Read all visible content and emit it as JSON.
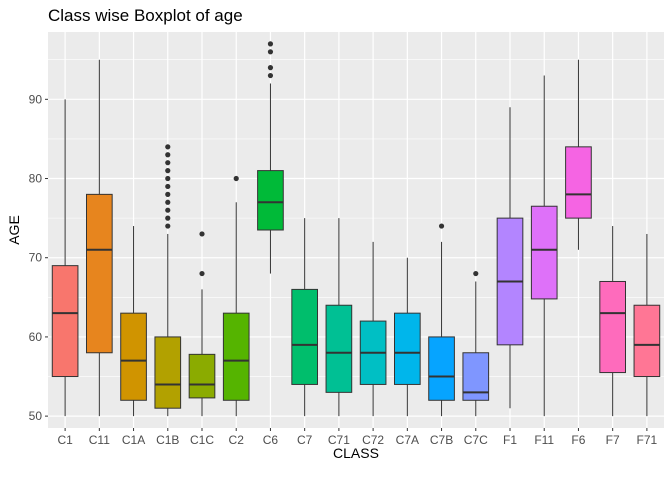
{
  "chart_data": {
    "type": "boxplot",
    "title": "Class wise Boxplot of age",
    "xlabel": "CLASS",
    "ylabel": "AGE",
    "ylim": [
      48.5,
      98.5
    ],
    "yticks": [
      50,
      60,
      70,
      80,
      90
    ],
    "grid": true,
    "legend": "none",
    "panel_color": "#ebebeb",
    "grid_color": "#ffffff",
    "categories": [
      "C1",
      "C11",
      "C1A",
      "C1B",
      "C1C",
      "C2",
      "C6",
      "C7",
      "C71",
      "C72",
      "C7A",
      "C7B",
      "C7C",
      "F1",
      "F11",
      "F6",
      "F7",
      "F71"
    ],
    "boxes": [
      {
        "name": "C1",
        "color": "#F8766D",
        "min": 50,
        "q1": 55,
        "median": 63,
        "q3": 69,
        "max": 90,
        "outliers": []
      },
      {
        "name": "C11",
        "color": "#E7851E",
        "min": 50,
        "q1": 58,
        "median": 71,
        "q3": 78,
        "max": 95,
        "outliers": []
      },
      {
        "name": "C1A",
        "color": "#D09400",
        "min": 50,
        "q1": 52,
        "median": 57,
        "q3": 63,
        "max": 74,
        "outliers": []
      },
      {
        "name": "C1B",
        "color": "#B2A100",
        "min": 50,
        "q1": 51,
        "median": 54,
        "q3": 60,
        "max": 73,
        "outliers": [
          74,
          75,
          76,
          77,
          78,
          79,
          80,
          81,
          82,
          83,
          84
        ]
      },
      {
        "name": "C1C",
        "color": "#8BAB00",
        "min": 50,
        "q1": 52.3,
        "median": 54,
        "q3": 57.8,
        "max": 66,
        "outliers": [
          68,
          73
        ]
      },
      {
        "name": "C2",
        "color": "#55B400",
        "min": 50,
        "q1": 52,
        "median": 57,
        "q3": 63,
        "max": 77,
        "outliers": [
          80
        ]
      },
      {
        "name": "C6",
        "color": "#00BA38",
        "min": 68,
        "q1": 73.5,
        "median": 77,
        "q3": 81,
        "max": 92,
        "outliers": [
          93,
          94,
          96,
          97
        ]
      },
      {
        "name": "C7",
        "color": "#00BE6C",
        "min": 50,
        "q1": 54,
        "median": 59,
        "q3": 66,
        "max": 75,
        "outliers": []
      },
      {
        "name": "C71",
        "color": "#00C094",
        "min": 50,
        "q1": 53,
        "median": 58,
        "q3": 64,
        "max": 75,
        "outliers": []
      },
      {
        "name": "C72",
        "color": "#00BFC4",
        "min": 50,
        "q1": 54,
        "median": 58,
        "q3": 62,
        "max": 72,
        "outliers": []
      },
      {
        "name": "C7A",
        "color": "#00B6EB",
        "min": 50,
        "q1": 54,
        "median": 58,
        "q3": 63,
        "max": 70,
        "outliers": []
      },
      {
        "name": "C7B",
        "color": "#06A4FF",
        "min": 50,
        "q1": 52,
        "median": 55,
        "q3": 60,
        "max": 72,
        "outliers": [
          74
        ]
      },
      {
        "name": "C7C",
        "color": "#7F96FF",
        "min": 50,
        "q1": 52,
        "median": 53,
        "q3": 58,
        "max": 67,
        "outliers": [
          68
        ]
      },
      {
        "name": "F1",
        "color": "#B385FF",
        "min": 51,
        "q1": 59,
        "median": 67,
        "q3": 75,
        "max": 89,
        "outliers": []
      },
      {
        "name": "F11",
        "color": "#DE71F9",
        "min": 50,
        "q1": 64.8,
        "median": 71,
        "q3": 76.5,
        "max": 93,
        "outliers": []
      },
      {
        "name": "F6",
        "color": "#F564E3",
        "min": 71,
        "q1": 75,
        "median": 78,
        "q3": 84,
        "max": 95,
        "outliers": []
      },
      {
        "name": "F7",
        "color": "#FE6BBC",
        "min": 50,
        "q1": 55.5,
        "median": 63,
        "q3": 67,
        "max": 74,
        "outliers": []
      },
      {
        "name": "F71",
        "color": "#FF7695",
        "min": 50,
        "q1": 55,
        "median": 59,
        "q3": 64,
        "max": 73,
        "outliers": []
      }
    ]
  }
}
